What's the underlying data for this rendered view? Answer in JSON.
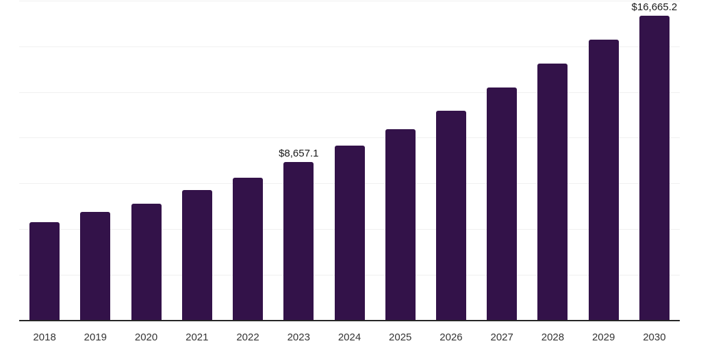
{
  "chart_data": {
    "type": "bar",
    "title": "",
    "xlabel": "",
    "ylabel": "",
    "categories": [
      "2018",
      "2019",
      "2020",
      "2021",
      "2022",
      "2023",
      "2024",
      "2025",
      "2026",
      "2027",
      "2028",
      "2029",
      "2030"
    ],
    "values": [
      5380,
      5950,
      6400,
      7140,
      7810,
      8657.1,
      9560,
      10460,
      11470,
      12750,
      14050,
      15360,
      16665.2
    ],
    "data_labels": [
      {
        "category": "2023",
        "text": "$8,657.1"
      },
      {
        "category": "2030",
        "text": "$16,665.2"
      }
    ],
    "ylim": [
      0,
      17500
    ],
    "gridline_interval": 2500,
    "grid": true,
    "legend_position": "none",
    "y_axis_labels_visible": false,
    "colors": {
      "bar": "#331249",
      "axis": "#262626",
      "gridline": "#f0f0f0",
      "tick_label": "#333333",
      "data_label": "#1a1a1a"
    }
  }
}
